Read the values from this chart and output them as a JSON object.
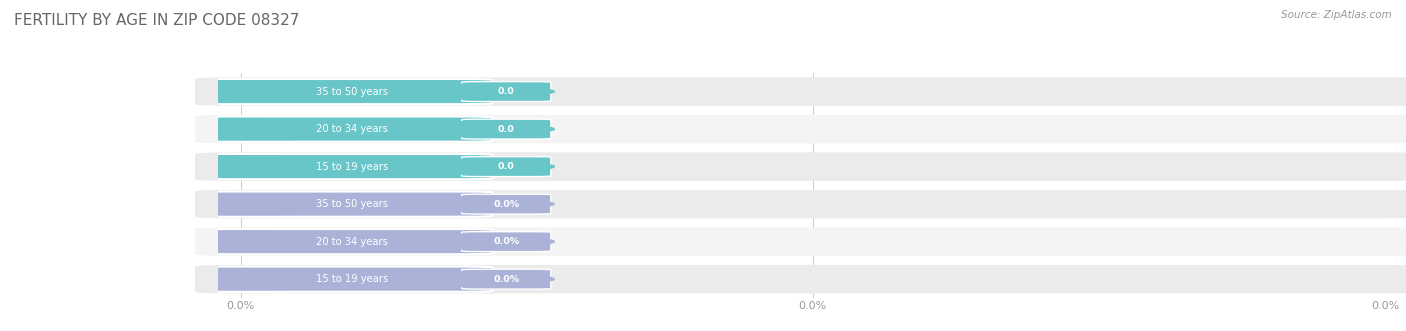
{
  "title": "FERTILITY BY AGE IN ZIP CODE 08327",
  "title_fontsize": 11,
  "title_color": "#666666",
  "source_text": "Source: ZipAtlas.com",
  "fig_bg_color": "#ffffff",
  "top_bars": {
    "categories": [
      "15 to 19 years",
      "20 to 34 years",
      "35 to 50 years"
    ],
    "values": [
      0.0,
      0.0,
      0.0
    ],
    "bar_color": "#68c5c8",
    "badge_color": "#5bbcbf",
    "xticklabels": [
      "0.0",
      "0.0",
      "0.0"
    ]
  },
  "bottom_bars": {
    "categories": [
      "15 to 19 years",
      "20 to 34 years",
      "35 to 50 years"
    ],
    "values": [
      0.0,
      0.0,
      0.0
    ],
    "bar_color": "#aab2d8",
    "badge_color": "#9aa2cc",
    "xticklabels": [
      "0.0%",
      "0.0%",
      "0.0%"
    ]
  },
  "row_colors_top": [
    "#ebebeb",
    "#f4f4f4",
    "#ebebeb"
  ],
  "row_colors_bot": [
    "#ebebeb",
    "#f4f4f4",
    "#ebebeb"
  ]
}
